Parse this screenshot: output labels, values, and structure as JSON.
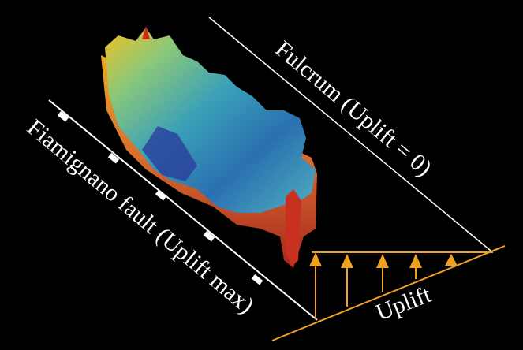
{
  "labels": {
    "fulcrum": "Fulcrum (Uplift = 0)",
    "fault": "Fiamignano fault (Uplift max)",
    "uplift": "Uplift"
  }
}
